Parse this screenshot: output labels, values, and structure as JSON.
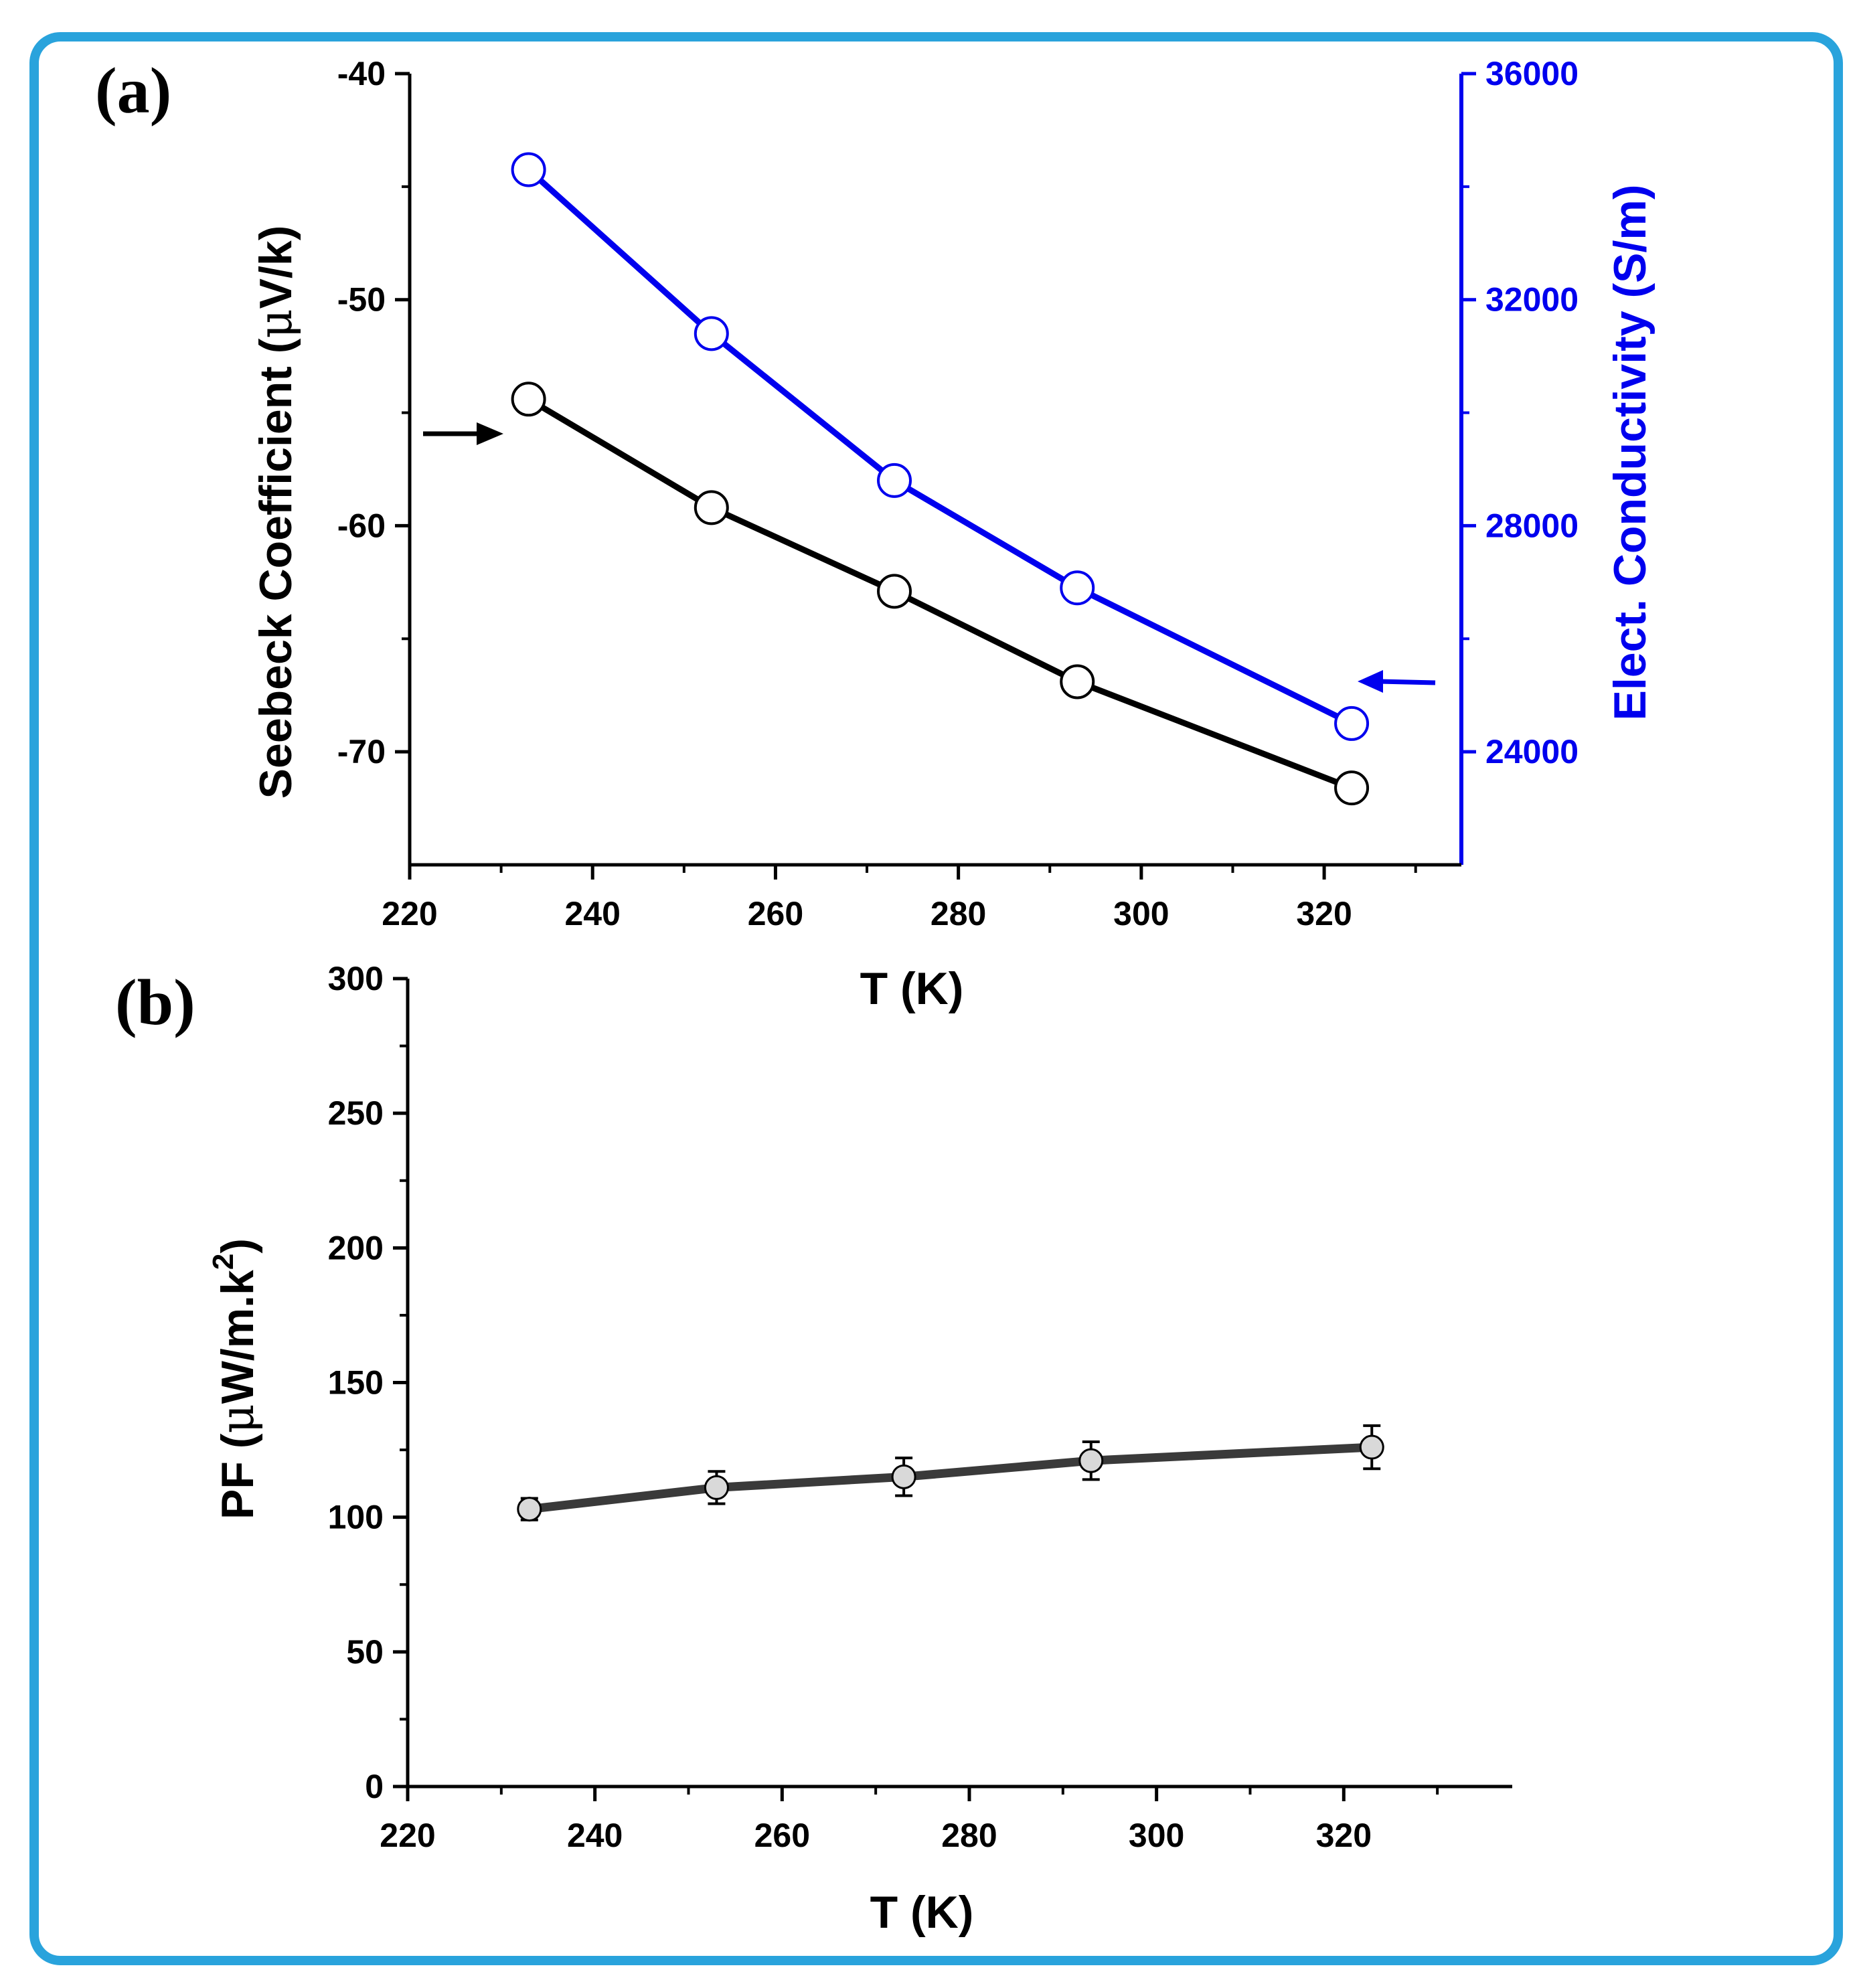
{
  "colors": {
    "frame": "#29a3dc",
    "seebeck": "#000000",
    "conductivity": "#0000ee",
    "pf_line": "#3a3a3a",
    "pf_marker_fill": "#d9d9d9"
  },
  "chart_data": [
    {
      "type": "line",
      "panel_label": "(a)",
      "title": "",
      "xlabel": "T (K)",
      "ylabel_prefix": "Seebeck Coefficient  (",
      "ylabel_mu": "μ",
      "ylabel_suffix": "V/k)",
      "y2label": "Elect. Conductivity (S/m)",
      "xlim": [
        220,
        335
      ],
      "ylim": [
        -75,
        -40
      ],
      "y2lim": [
        22000,
        36000
      ],
      "xticks": [
        220,
        240,
        260,
        280,
        300,
        320
      ],
      "xtick_labels": [
        "220",
        "240",
        "260",
        "280",
        "300",
        "320"
      ],
      "yticks": [
        -40,
        -50,
        -60,
        -70
      ],
      "ytick_labels": [
        "-40",
        "-50",
        "-60",
        "-70"
      ],
      "y2ticks": [
        36000,
        32000,
        28000,
        24000
      ],
      "y2tick_labels": [
        "36000",
        "32000",
        "28000",
        "24000"
      ],
      "series": [
        {
          "name": "Seebeck Coefficient",
          "axis": "left",
          "marker": "open-circle",
          "x": [
            233,
            253,
            273,
            293,
            323
          ],
          "y": [
            -54.4,
            -59.2,
            -62.9,
            -66.9,
            -71.6
          ],
          "arrow": "points-to-left-axis"
        },
        {
          "name": "Elect. Conductivity",
          "axis": "right",
          "marker": "open-circle",
          "x": [
            233,
            253,
            273,
            293,
            323
          ],
          "y": [
            34300,
            31400,
            28800,
            26900,
            24500
          ],
          "arrow": "points-to-right-axis"
        }
      ]
    },
    {
      "type": "line",
      "panel_label": "(b)",
      "title": "",
      "xlabel": "T (K)",
      "ylabel_prefix": "PF (",
      "ylabel_mu": "μ",
      "ylabel_mid": "W/m.k",
      "ylabel_sup": "2",
      "ylabel_suffix": ")",
      "xlim": [
        220,
        338
      ],
      "ylim": [
        0,
        300
      ],
      "xticks": [
        220,
        240,
        260,
        280,
        300,
        320
      ],
      "xtick_labels": [
        "220",
        "240",
        "260",
        "280",
        "300",
        "320"
      ],
      "yticks": [
        0,
        50,
        100,
        150,
        200,
        250,
        300
      ],
      "ytick_labels": [
        "0",
        "50",
        "100",
        "150",
        "200",
        "250",
        "300"
      ],
      "series": [
        {
          "name": "PF",
          "marker": "filled-circle",
          "x": [
            233,
            253,
            273,
            293,
            323
          ],
          "y": [
            103,
            111,
            115,
            121,
            126
          ],
          "error": [
            4,
            6,
            7,
            7,
            8
          ]
        }
      ]
    }
  ]
}
